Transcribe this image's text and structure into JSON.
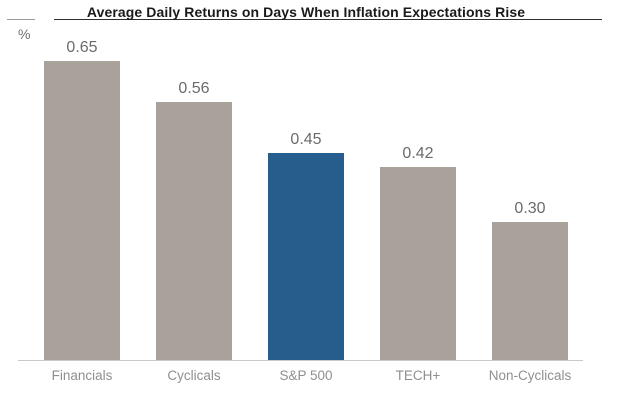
{
  "header": {
    "title": "Average Daily Returns on Days When Inflation Expectations Rise",
    "unit_label": "%"
  },
  "chart_data": {
    "type": "bar",
    "title": "Average Daily Returns on Days When Inflation Expectations Rise",
    "categories": [
      "Financials",
      "Cyclicals",
      "S&P 500",
      "TECH+",
      "Non-Cyclicals"
    ],
    "values": [
      0.65,
      0.56,
      0.45,
      0.42,
      0.3
    ],
    "value_labels": [
      "0.65",
      "0.56",
      "0.45",
      "0.42",
      "0.30"
    ],
    "xlabel": "",
    "ylabel": "%",
    "ylim": [
      0,
      0.78
    ],
    "grid": false,
    "legend": "none",
    "axis_labels_visible": false,
    "highlight_category": "S&P 500",
    "highlight_index": 2,
    "colors": {
      "bar_default": "#A8A29B",
      "bar_highlight": "#255E8C",
      "value_label": "#6B6B6B",
      "category_label": "#8F8F8F",
      "baseline": "#C9C9C9"
    }
  }
}
